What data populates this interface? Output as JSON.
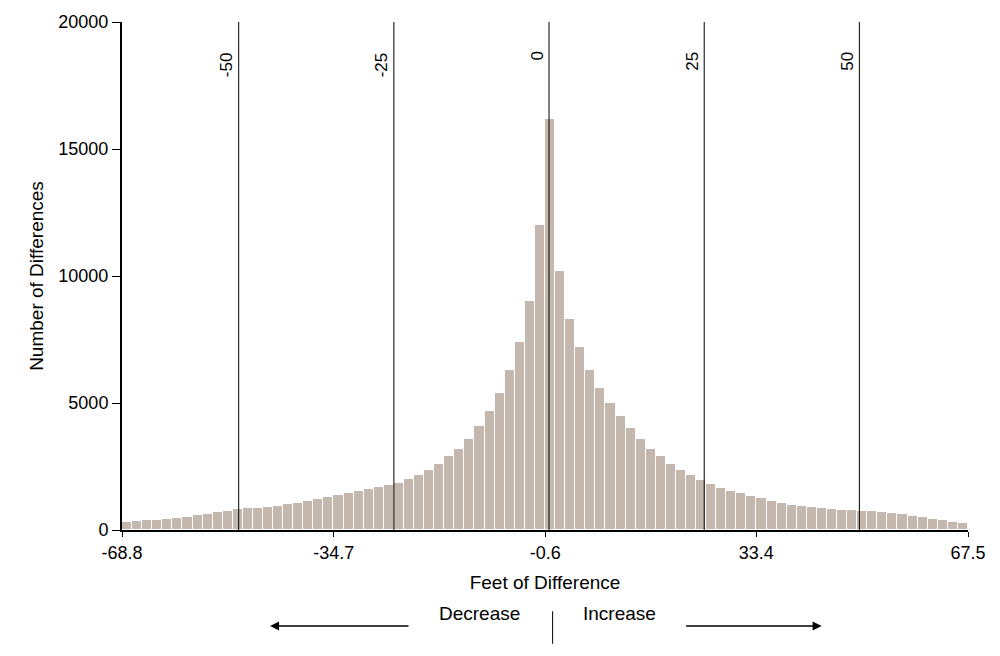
{
  "chart_data": {
    "type": "histogram",
    "x_label": "Feet of Difference",
    "y_label": "Number of Differences",
    "bins": [
      -68.8,
      -67.18,
      -65.55,
      -63.93,
      -62.31,
      -60.69,
      -59.06,
      -57.44,
      -55.82,
      -54.2,
      -52.57,
      -50.95,
      -49.33,
      -47.71,
      -46.08,
      -44.46,
      -42.84,
      -41.22,
      -39.59,
      -37.97,
      -36.35,
      -34.73,
      -33.1,
      -31.48,
      -29.86,
      -28.23,
      -26.61,
      -24.99,
      -23.37,
      -21.74,
      -20.12,
      -18.5,
      -16.88,
      -15.25,
      -13.63,
      -12.01,
      -10.39,
      -8.76,
      -7.14,
      -5.52,
      -3.9,
      -2.27,
      -0.65,
      0.97,
      2.6,
      4.22,
      5.84,
      7.46,
      9.09,
      10.71,
      12.33,
      13.95,
      15.58,
      17.2,
      18.82,
      20.44,
      22.07,
      23.69,
      25.31,
      26.93,
      28.56,
      30.18,
      31.8,
      33.42,
      35.05,
      36.67,
      38.29,
      39.91,
      41.54,
      43.16,
      44.78,
      46.4,
      48.03,
      49.65,
      51.27,
      52.89,
      54.52,
      56.14,
      57.76,
      59.38,
      61.01,
      62.63,
      64.25,
      65.87,
      67.5
    ],
    "values": [
      300,
      350,
      380,
      400,
      430,
      480,
      530,
      580,
      640,
      700,
      760,
      820,
      860,
      880,
      920,
      960,
      1010,
      1080,
      1150,
      1230,
      1300,
      1370,
      1450,
      1520,
      1600,
      1680,
      1760,
      1850,
      2000,
      2150,
      2350,
      2600,
      2900,
      3200,
      3600,
      4100,
      4700,
      5400,
      6300,
      7400,
      9000,
      12000,
      16200,
      10200,
      8300,
      7200,
      6300,
      5600,
      5000,
      4500,
      4000,
      3600,
      3200,
      2900,
      2600,
      2350,
      2150,
      1950,
      1800,
      1650,
      1550,
      1450,
      1350,
      1250,
      1150,
      1080,
      1000,
      950,
      900,
      860,
      830,
      800,
      780,
      760,
      740,
      700,
      660,
      620,
      560,
      500,
      440,
      380,
      320,
      260
    ],
    "color": "#c4b7ae",
    "xlim": [
      -68.8,
      67.5
    ],
    "xticks": [
      -68.8,
      -34.7,
      -0.6,
      33.4,
      67.5
    ],
    "ylim": [
      0,
      20000
    ],
    "yticks": [
      0,
      5000,
      10000,
      15000,
      20000
    ],
    "reference_lines": [
      -50,
      -25,
      0,
      25,
      50
    ],
    "annotations": [
      "Decrease",
      "Increase"
    ],
    "grid": false
  }
}
